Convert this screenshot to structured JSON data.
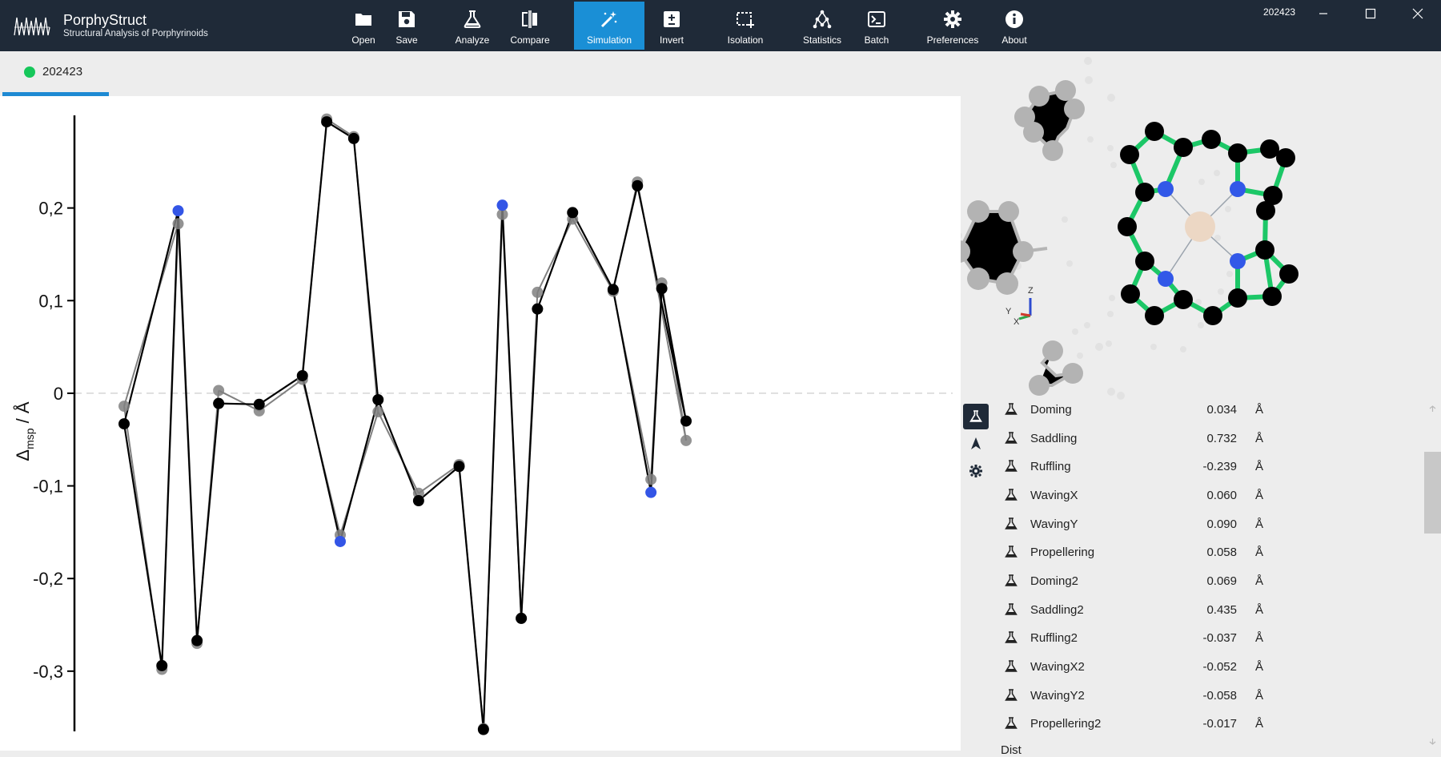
{
  "app": {
    "title": "PorphyStruct",
    "subtitle": "Structural Analysis of Porphyrinoids",
    "document_id": "202423"
  },
  "toolbar": {
    "items": [
      {
        "label": "Open",
        "icon": "folder-icon"
      },
      {
        "label": "Save",
        "icon": "floppy-disk-icon"
      },
      {
        "label": "Analyze",
        "icon": "flask-icon"
      },
      {
        "label": "Compare",
        "icon": "compare-icon"
      },
      {
        "label": "Simulation",
        "icon": "magic-wand-icon",
        "active": true
      },
      {
        "label": "Invert",
        "icon": "plus-minus-icon"
      },
      {
        "label": "Isolation",
        "icon": "selection-icon"
      },
      {
        "label": "Statistics",
        "icon": "graph-icon"
      },
      {
        "label": "Batch",
        "icon": "terminal-icon"
      },
      {
        "label": "Preferences",
        "icon": "gear-icon"
      },
      {
        "label": "About",
        "icon": "info-icon"
      }
    ],
    "active_color": "#1a8fd6"
  },
  "tab": {
    "label": "202423",
    "status_color": "#16c75a"
  },
  "properties": [
    {
      "name": "Doming",
      "value": "0.034",
      "unit": "Å"
    },
    {
      "name": "Saddling",
      "value": "0.732",
      "unit": "Å"
    },
    {
      "name": "Ruffling",
      "value": "-0.239",
      "unit": "Å"
    },
    {
      "name": "WavingX",
      "value": "0.060",
      "unit": "Å"
    },
    {
      "name": "WavingY",
      "value": "0.090",
      "unit": "Å"
    },
    {
      "name": "Propellering",
      "value": "0.058",
      "unit": "Å"
    },
    {
      "name": "Doming2",
      "value": "0.069",
      "unit": "Å"
    },
    {
      "name": "Saddling2",
      "value": "0.435",
      "unit": "Å"
    },
    {
      "name": "Ruffling2",
      "value": "-0.037",
      "unit": "Å"
    },
    {
      "name": "WavingX2",
      "value": "-0.052",
      "unit": "Å"
    },
    {
      "name": "WavingY2",
      "value": "-0.058",
      "unit": "Å"
    },
    {
      "name": "Propellering2",
      "value": "-0.017",
      "unit": "Å"
    }
  ],
  "next_section": "Dist",
  "axes_gizmo": {
    "x": "X",
    "y": "Y",
    "z": "Z"
  },
  "chart_data": {
    "type": "scatter",
    "ylabel_main": "Δ",
    "ylabel_sub": "msp",
    "ylabel_unit": " / Å",
    "ylim": [
      -0.365,
      0.3
    ],
    "yticks": [
      -0.3,
      -0.2,
      -0.1,
      0,
      0.1,
      0.2
    ],
    "ytick_labels": [
      "-0,3",
      "-0,2",
      "-0,1",
      "0",
      "0,1",
      "0,2"
    ],
    "grid": false,
    "zero_line": true,
    "series": [
      {
        "color": "#808080",
        "points": [
          {
            "x": 1.0,
            "y": -0.014
          },
          {
            "x": 1.7,
            "y": -0.298
          },
          {
            "x": 2.0,
            "y": 0.183
          },
          {
            "x": 2.35,
            "y": -0.27
          },
          {
            "x": 2.75,
            "y": 0.003
          },
          {
            "x": 3.5,
            "y": -0.019
          },
          {
            "x": 4.3,
            "y": 0.015
          },
          {
            "x": 4.75,
            "y": 0.296
          },
          {
            "x": 5.0,
            "y": -0.153
          },
          {
            "x": 5.25,
            "y": 0.277
          },
          {
            "x": 5.7,
            "y": -0.02
          },
          {
            "x": 6.45,
            "y": -0.108
          },
          {
            "x": 7.2,
            "y": -0.077
          },
          {
            "x": 7.65,
            "y": -0.362
          },
          {
            "x": 8.0,
            "y": 0.193
          },
          {
            "x": 8.35,
            "y": -0.243
          },
          {
            "x": 8.65,
            "y": 0.109
          },
          {
            "x": 9.3,
            "y": 0.188
          },
          {
            "x": 10.05,
            "y": 0.11
          },
          {
            "x": 10.5,
            "y": 0.228
          },
          {
            "x": 10.75,
            "y": -0.093
          },
          {
            "x": 10.95,
            "y": 0.119
          },
          {
            "x": 11.4,
            "y": -0.051
          }
        ]
      },
      {
        "color": "#000000",
        "marked_color": "#3355e6",
        "points": [
          {
            "x": 1.0,
            "y": -0.033
          },
          {
            "x": 1.7,
            "y": -0.294
          },
          {
            "x": 2.0,
            "y": 0.197,
            "marked": true
          },
          {
            "x": 2.35,
            "y": -0.267
          },
          {
            "x": 2.75,
            "y": -0.011
          },
          {
            "x": 3.5,
            "y": -0.012
          },
          {
            "x": 4.3,
            "y": 0.019
          },
          {
            "x": 4.75,
            "y": 0.293
          },
          {
            "x": 5.0,
            "y": -0.16,
            "marked": true
          },
          {
            "x": 5.25,
            "y": 0.275
          },
          {
            "x": 5.7,
            "y": -0.007
          },
          {
            "x": 6.45,
            "y": -0.116
          },
          {
            "x": 7.2,
            "y": -0.079
          },
          {
            "x": 7.65,
            "y": -0.363
          },
          {
            "x": 8.0,
            "y": 0.203,
            "marked": true
          },
          {
            "x": 8.35,
            "y": -0.243
          },
          {
            "x": 8.65,
            "y": 0.091
          },
          {
            "x": 9.3,
            "y": 0.195
          },
          {
            "x": 10.05,
            "y": 0.112
          },
          {
            "x": 10.5,
            "y": 0.224
          },
          {
            "x": 10.75,
            "y": -0.107,
            "marked": true
          },
          {
            "x": 10.95,
            "y": 0.113
          },
          {
            "x": 11.4,
            "y": -0.03
          }
        ],
        "connections": [
          [
            0,
            1
          ],
          [
            1,
            2
          ],
          [
            2,
            3
          ],
          [
            3,
            4
          ],
          [
            4,
            5
          ],
          [
            5,
            6
          ],
          [
            6,
            7
          ],
          [
            7,
            9
          ],
          [
            9,
            10
          ],
          [
            6,
            8
          ],
          [
            8,
            10
          ],
          [
            10,
            11
          ],
          [
            11,
            12
          ],
          [
            12,
            13
          ],
          [
            13,
            14
          ],
          [
            14,
            15
          ],
          [
            15,
            16
          ],
          [
            16,
            17
          ],
          [
            17,
            18
          ],
          [
            18,
            20
          ],
          [
            20,
            21
          ],
          [
            21,
            22
          ],
          [
            18,
            19
          ],
          [
            19,
            22
          ],
          [
            0,
            2
          ]
        ]
      }
    ]
  }
}
